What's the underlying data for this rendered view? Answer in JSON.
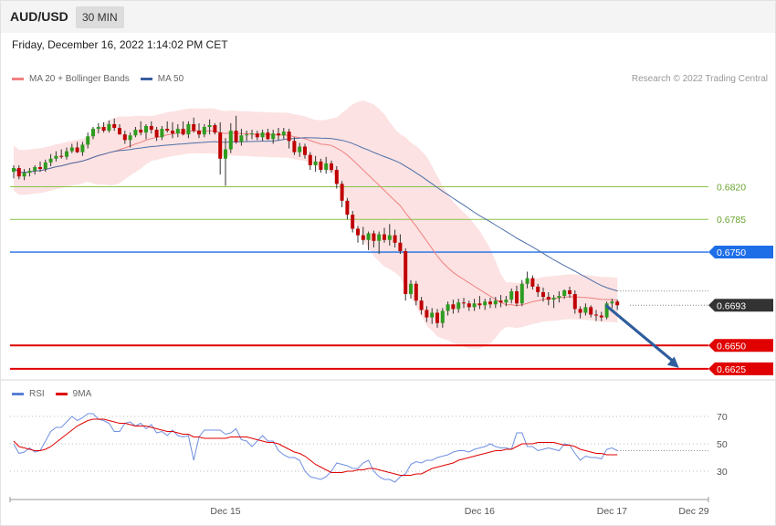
{
  "header": {
    "symbol": "AUD/USD",
    "timeframe": "30 MIN"
  },
  "timestamp": "Friday, December 16, 2022 1:14:02 PM CET",
  "legend_main": [
    {
      "label": "MA 20 + Bollinger Bands",
      "color": "#f08080"
    },
    {
      "label": "MA 50",
      "color": "#3a5fa0"
    }
  ],
  "credit": "Research © 2022 Trading Central",
  "legend_rsi": [
    {
      "label": "RSI",
      "color": "#5b7fd6"
    },
    {
      "label": "9MA",
      "color": "#e00000"
    }
  ],
  "colors": {
    "up": "#2e9c1f",
    "down": "#c00000",
    "wick": "#333333"
  },
  "chart_data": [
    {
      "type": "candlestick",
      "title": "",
      "ylim": [
        0.6617,
        0.693
      ],
      "x_ticks": [
        {
          "label": "Dec 15",
          "index": 40
        },
        {
          "label": "Dec 16",
          "index": 88
        },
        {
          "label": "Dec 17",
          "index": 113
        },
        {
          "label": "Dec 29",
          "index": 125
        }
      ],
      "levels": [
        {
          "value": 0.682,
          "label": "0.6820",
          "color": "#8bc34a",
          "type": "resistance"
        },
        {
          "value": 0.6785,
          "label": "0.6785",
          "color": "#8bc34a",
          "type": "resistance"
        },
        {
          "value": 0.675,
          "label": "0.6750",
          "color": "#1e6ee8",
          "type": "pivot"
        },
        {
          "value": 0.6693,
          "label": "0.6693",
          "color": "#333333",
          "type": "last"
        },
        {
          "value": 0.665,
          "label": "0.6650",
          "color": "#e00000",
          "type": "support"
        },
        {
          "value": 0.6625,
          "label": "0.6625",
          "color": "#e00000",
          "type": "support"
        }
      ],
      "forecast": {
        "from": 0.6693,
        "to": 0.6625,
        "from_index": 112,
        "to_index": 126,
        "color": "#2f5e9e"
      },
      "series": [
        {
          "name": "AUD/USD",
          "ohlc": [
            [
              0.6836,
              0.6843,
              0.6829,
              0.684
            ],
            [
              0.684,
              0.6843,
              0.6828,
              0.6831
            ],
            [
              0.6831,
              0.6839,
              0.6827,
              0.6835
            ],
            [
              0.6835,
              0.684,
              0.6831,
              0.6837
            ],
            [
              0.6837,
              0.6843,
              0.6833,
              0.6841
            ],
            [
              0.6841,
              0.6847,
              0.6836,
              0.6839
            ],
            [
              0.6839,
              0.6849,
              0.6836,
              0.6846
            ],
            [
              0.6846,
              0.6855,
              0.6842,
              0.685
            ],
            [
              0.685,
              0.6858,
              0.6847,
              0.6853
            ],
            [
              0.6853,
              0.686,
              0.685,
              0.6852
            ],
            [
              0.6852,
              0.6862,
              0.6849,
              0.6858
            ],
            [
              0.6858,
              0.6866,
              0.6856,
              0.6862
            ],
            [
              0.6862,
              0.6868,
              0.6856,
              0.6857
            ],
            [
              0.6857,
              0.6868,
              0.6853,
              0.6865
            ],
            [
              0.6865,
              0.6878,
              0.6861,
              0.6874
            ],
            [
              0.6874,
              0.6884,
              0.6871,
              0.6882
            ],
            [
              0.6882,
              0.6888,
              0.6877,
              0.6884
            ],
            [
              0.6884,
              0.6889,
              0.6878,
              0.688
            ],
            [
              0.688,
              0.6891,
              0.6878,
              0.6887
            ],
            [
              0.6887,
              0.6893,
              0.688,
              0.6883
            ],
            [
              0.6883,
              0.6887,
              0.6876,
              0.6876
            ],
            [
              0.6876,
              0.688,
              0.6866,
              0.687
            ],
            [
              0.687,
              0.6878,
              0.6862,
              0.6875
            ],
            [
              0.6875,
              0.6884,
              0.6873,
              0.6881
            ],
            [
              0.6881,
              0.689,
              0.6875,
              0.6878
            ],
            [
              0.6878,
              0.6887,
              0.6871,
              0.6885
            ],
            [
              0.6885,
              0.689,
              0.6877,
              0.6881
            ],
            [
              0.6881,
              0.6884,
              0.6869,
              0.6873
            ],
            [
              0.6873,
              0.6885,
              0.687,
              0.6882
            ],
            [
              0.6882,
              0.689,
              0.6878,
              0.688
            ],
            [
              0.688,
              0.6889,
              0.6872,
              0.6877
            ],
            [
              0.6877,
              0.6887,
              0.6873,
              0.6882
            ],
            [
              0.6882,
              0.689,
              0.6875,
              0.6876
            ],
            [
              0.6876,
              0.689,
              0.6872,
              0.6887
            ],
            [
              0.6887,
              0.6894,
              0.6878,
              0.688
            ],
            [
              0.688,
              0.6888,
              0.6872,
              0.6876
            ],
            [
              0.6876,
              0.6887,
              0.6873,
              0.6884
            ],
            [
              0.6884,
              0.6892,
              0.6876,
              0.6886
            ],
            [
              0.6886,
              0.6888,
              0.6876,
              0.6878
            ],
            [
              0.6878,
              0.6889,
              0.6833,
              0.685
            ],
            [
              0.685,
              0.6872,
              0.6821,
              0.686
            ],
            [
              0.686,
              0.6888,
              0.6856,
              0.688
            ],
            [
              0.688,
              0.6896,
              0.6866,
              0.6868
            ],
            [
              0.6868,
              0.6882,
              0.6864,
              0.6875
            ],
            [
              0.6875,
              0.688,
              0.6869,
              0.6876
            ],
            [
              0.6876,
              0.6881,
              0.6871,
              0.6877
            ],
            [
              0.6877,
              0.688,
              0.687,
              0.6873
            ],
            [
              0.6873,
              0.6881,
              0.6869,
              0.6878
            ],
            [
              0.6878,
              0.6882,
              0.687,
              0.6871
            ],
            [
              0.6871,
              0.6881,
              0.6866,
              0.6877
            ],
            [
              0.6877,
              0.6883,
              0.687,
              0.6875
            ],
            [
              0.6875,
              0.6883,
              0.6871,
              0.6879
            ],
            [
              0.6879,
              0.6882,
              0.6861,
              0.6869
            ],
            [
              0.6869,
              0.6873,
              0.6854,
              0.6857
            ],
            [
              0.6857,
              0.6867,
              0.6852,
              0.6863
            ],
            [
              0.6863,
              0.6866,
              0.685,
              0.6854
            ],
            [
              0.6854,
              0.6857,
              0.6838,
              0.6843
            ],
            [
              0.6843,
              0.6853,
              0.6836,
              0.6847
            ],
            [
              0.6847,
              0.685,
              0.6835,
              0.6838
            ],
            [
              0.6838,
              0.6852,
              0.6834,
              0.6845
            ],
            [
              0.6845,
              0.6848,
              0.6835,
              0.6838
            ],
            [
              0.6838,
              0.6842,
              0.6818,
              0.6823
            ],
            [
              0.6823,
              0.6826,
              0.6798,
              0.6805
            ],
            [
              0.6805,
              0.6808,
              0.6785,
              0.679
            ],
            [
              0.679,
              0.6794,
              0.6771,
              0.6775
            ],
            [
              0.6775,
              0.6778,
              0.676,
              0.6768
            ],
            [
              0.6768,
              0.6777,
              0.6758,
              0.6763
            ],
            [
              0.6763,
              0.6772,
              0.6752,
              0.677
            ],
            [
              0.677,
              0.6773,
              0.6755,
              0.6762
            ],
            [
              0.6762,
              0.6772,
              0.6748,
              0.6769
            ],
            [
              0.6769,
              0.6776,
              0.676,
              0.6763
            ],
            [
              0.6763,
              0.678,
              0.6757,
              0.6768
            ],
            [
              0.6768,
              0.6774,
              0.6755,
              0.676
            ],
            [
              0.676,
              0.6769,
              0.6748,
              0.6751
            ],
            [
              0.6751,
              0.6754,
              0.6698,
              0.6705
            ],
            [
              0.6705,
              0.672,
              0.67,
              0.6716
            ],
            [
              0.6716,
              0.6719,
              0.6693,
              0.6698
            ],
            [
              0.6698,
              0.6702,
              0.6683,
              0.6688
            ],
            [
              0.6688,
              0.6692,
              0.6675,
              0.668
            ],
            [
              0.668,
              0.669,
              0.6673,
              0.6685
            ],
            [
              0.6685,
              0.6689,
              0.6669,
              0.6674
            ],
            [
              0.6674,
              0.669,
              0.6669,
              0.6687
            ],
            [
              0.6687,
              0.6697,
              0.6682,
              0.6694
            ],
            [
              0.6694,
              0.6699,
              0.6684,
              0.6689
            ],
            [
              0.6689,
              0.67,
              0.6685,
              0.6696
            ],
            [
              0.6696,
              0.6701,
              0.669,
              0.6695
            ],
            [
              0.6695,
              0.6698,
              0.6687,
              0.6691
            ],
            [
              0.6691,
              0.67,
              0.6687,
              0.6695
            ],
            [
              0.6695,
              0.6703,
              0.6689,
              0.6693
            ],
            [
              0.6693,
              0.67,
              0.6688,
              0.6697
            ],
            [
              0.6697,
              0.6701,
              0.669,
              0.6694
            ],
            [
              0.6694,
              0.6702,
              0.669,
              0.6698
            ],
            [
              0.6698,
              0.6704,
              0.6691,
              0.6696
            ],
            [
              0.6696,
              0.6703,
              0.6692,
              0.6699
            ],
            [
              0.6699,
              0.6711,
              0.6695,
              0.6708
            ],
            [
              0.6708,
              0.6714,
              0.6692,
              0.6695
            ],
            [
              0.6695,
              0.672,
              0.6692,
              0.6716
            ],
            [
              0.6716,
              0.6729,
              0.6711,
              0.6722
            ],
            [
              0.6722,
              0.6725,
              0.671,
              0.6713
            ],
            [
              0.6713,
              0.6716,
              0.6702,
              0.6707
            ],
            [
              0.6707,
              0.6712,
              0.6697,
              0.6702
            ],
            [
              0.6702,
              0.6707,
              0.6693,
              0.6699
            ],
            [
              0.6699,
              0.6704,
              0.669,
              0.6701
            ],
            [
              0.6701,
              0.6708,
              0.6696,
              0.6703
            ],
            [
              0.6703,
              0.671,
              0.67,
              0.6709
            ],
            [
              0.6709,
              0.6713,
              0.6701,
              0.6705
            ],
            [
              0.6705,
              0.6709,
              0.6684,
              0.6689
            ],
            [
              0.6689,
              0.6692,
              0.6679,
              0.6685
            ],
            [
              0.6685,
              0.6695,
              0.6682,
              0.6691
            ],
            [
              0.6691,
              0.6693,
              0.668,
              0.6683
            ],
            [
              0.6683,
              0.6688,
              0.6676,
              0.6682
            ],
            [
              0.6682,
              0.6686,
              0.6676,
              0.668
            ],
            [
              0.668,
              0.6697,
              0.6678,
              0.6695
            ],
            [
              0.6695,
              0.67,
              0.669,
              0.6697
            ],
            [
              0.6697,
              0.6699,
              0.6688,
              0.6693
            ]
          ]
        }
      ]
    },
    {
      "type": "line",
      "title": "",
      "ylim": [
        14,
        80
      ],
      "y_ticks": [
        70,
        50,
        30
      ],
      "series": [
        {
          "name": "RSI",
          "values": [
            50,
            43,
            44,
            47,
            44,
            45,
            52,
            59,
            62,
            62,
            66,
            70,
            67,
            69,
            72,
            72,
            68,
            67,
            65,
            59,
            59,
            65,
            66,
            63,
            65,
            61,
            64,
            58,
            59,
            56,
            60,
            56,
            55,
            56,
            38,
            55,
            60,
            60,
            60,
            60,
            57,
            58,
            61,
            53,
            52,
            48,
            52,
            56,
            52,
            52,
            45,
            42,
            40,
            40,
            38,
            30,
            26,
            25,
            24,
            26,
            30,
            36,
            35,
            34,
            32,
            32,
            36,
            38,
            30,
            26,
            24,
            24,
            22,
            26,
            28,
            35,
            37,
            36,
            38,
            38,
            40,
            41,
            42,
            44,
            45,
            45,
            44,
            46,
            47,
            48,
            50,
            48,
            47,
            47,
            46,
            58,
            58,
            48,
            48,
            45,
            46,
            47,
            46,
            45,
            50,
            49,
            43,
            38,
            41,
            40,
            40,
            39,
            46,
            47,
            45
          ]
        },
        {
          "name": "9MA",
          "values": [
            52,
            48,
            47,
            46,
            45,
            45,
            46,
            48,
            51,
            54,
            57,
            60,
            63,
            65,
            67,
            68,
            68,
            68,
            67,
            66,
            65,
            65,
            64,
            63,
            63,
            63,
            62,
            61,
            60,
            59,
            59,
            58,
            57,
            57,
            55,
            55,
            54,
            54,
            54,
            54,
            54,
            55,
            55,
            55,
            55,
            54,
            53,
            52,
            51,
            51,
            50,
            48,
            46,
            44,
            43,
            41,
            38,
            35,
            33,
            31,
            29,
            29,
            29,
            30,
            30,
            31,
            31,
            32,
            32,
            31,
            30,
            29,
            28,
            27,
            27,
            27,
            28,
            28,
            30,
            32,
            33,
            34,
            35,
            36,
            38,
            39,
            40,
            41,
            42,
            43,
            44,
            45,
            45,
            46,
            46,
            48,
            50,
            50,
            50,
            51,
            51,
            51,
            51,
            50,
            49,
            49,
            48,
            46,
            45,
            44,
            43,
            43,
            42,
            42,
            42
          ]
        }
      ]
    }
  ]
}
